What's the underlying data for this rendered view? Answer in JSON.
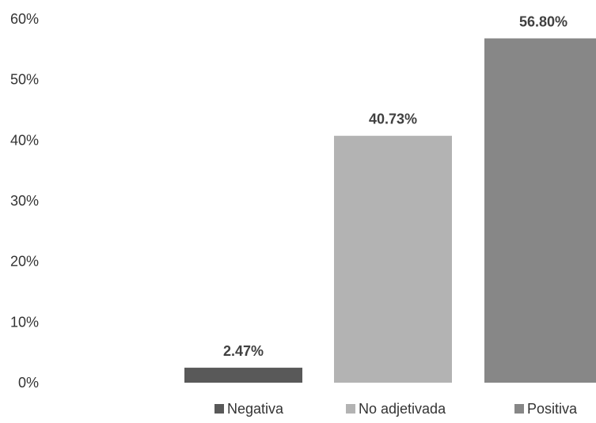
{
  "chart_data": {
    "type": "bar",
    "categories": [
      "Negativa",
      "No adjetivada",
      "Positiva"
    ],
    "values": [
      2.47,
      40.73,
      56.8
    ],
    "data_labels": [
      "2.47%",
      "40.73%",
      "56.80%"
    ],
    "title": "",
    "xlabel": "",
    "ylabel": "",
    "ylim": [
      0,
      60
    ],
    "yticks": [
      0,
      10,
      20,
      30,
      40,
      50,
      60
    ],
    "ytick_labels": [
      "0%",
      "10%",
      "20%",
      "30%",
      "40%",
      "50%",
      "60%"
    ],
    "grid": false,
    "legend": {
      "position": "bottom",
      "entries": [
        "Negativa",
        "No adjetivada",
        "Positiva"
      ]
    },
    "colors": [
      "#595959",
      "#b3b3b3",
      "#878787"
    ]
  }
}
